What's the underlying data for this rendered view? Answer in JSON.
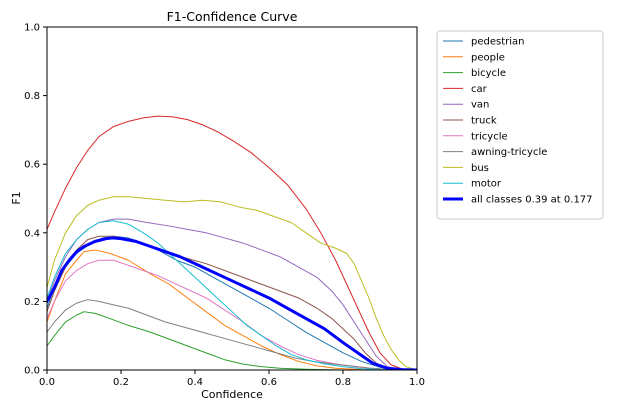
{
  "chart_data": {
    "type": "line",
    "title": "F1-Confidence Curve",
    "xlabel": "Confidence",
    "ylabel": "F1",
    "xlim": [
      0.0,
      1.0
    ],
    "ylim": [
      0.0,
      1.0
    ],
    "xticks": [
      "0.0",
      "0.2",
      "0.4",
      "0.6",
      "0.8",
      "1.0"
    ],
    "yticks": [
      "0.0",
      "0.2",
      "0.4",
      "0.6",
      "0.8",
      "1.0"
    ],
    "grid": false,
    "legend_position": "outside-right",
    "series": [
      {
        "name": "pedestrian",
        "color": "#1f77b4",
        "line_width": "thin",
        "points": [
          [
            0,
            0.18
          ],
          [
            0.02,
            0.24
          ],
          [
            0.05,
            0.3
          ],
          [
            0.08,
            0.34
          ],
          [
            0.12,
            0.37
          ],
          [
            0.15,
            0.385
          ],
          [
            0.18,
            0.39
          ],
          [
            0.22,
            0.385
          ],
          [
            0.26,
            0.37
          ],
          [
            0.3,
            0.35
          ],
          [
            0.35,
            0.32
          ],
          [
            0.4,
            0.3
          ],
          [
            0.45,
            0.27
          ],
          [
            0.5,
            0.24
          ],
          [
            0.55,
            0.21
          ],
          [
            0.6,
            0.18
          ],
          [
            0.65,
            0.145
          ],
          [
            0.7,
            0.11
          ],
          [
            0.75,
            0.08
          ],
          [
            0.8,
            0.05
          ],
          [
            0.85,
            0.025
          ],
          [
            0.9,
            0.008
          ],
          [
            0.95,
            0.002
          ],
          [
            1.0,
            0
          ]
        ]
      },
      {
        "name": "people",
        "color": "#ff7f0e",
        "line_width": "thin",
        "points": [
          [
            0,
            0.14
          ],
          [
            0.02,
            0.2
          ],
          [
            0.05,
            0.28
          ],
          [
            0.08,
            0.32
          ],
          [
            0.1,
            0.345
          ],
          [
            0.13,
            0.35
          ],
          [
            0.17,
            0.34
          ],
          [
            0.22,
            0.32
          ],
          [
            0.28,
            0.28
          ],
          [
            0.33,
            0.25
          ],
          [
            0.38,
            0.21
          ],
          [
            0.43,
            0.17
          ],
          [
            0.48,
            0.13
          ],
          [
            0.53,
            0.1
          ],
          [
            0.58,
            0.07
          ],
          [
            0.63,
            0.045
          ],
          [
            0.68,
            0.025
          ],
          [
            0.73,
            0.012
          ],
          [
            0.78,
            0.005
          ],
          [
            0.85,
            0.001
          ],
          [
            0.9,
            0
          ],
          [
            1.0,
            0
          ]
        ]
      },
      {
        "name": "bicycle",
        "color": "#2ca02c",
        "line_width": "thin",
        "points": [
          [
            0,
            0.07
          ],
          [
            0.02,
            0.1
          ],
          [
            0.05,
            0.14
          ],
          [
            0.08,
            0.16
          ],
          [
            0.1,
            0.17
          ],
          [
            0.13,
            0.165
          ],
          [
            0.17,
            0.15
          ],
          [
            0.22,
            0.13
          ],
          [
            0.28,
            0.11
          ],
          [
            0.33,
            0.09
          ],
          [
            0.38,
            0.07
          ],
          [
            0.43,
            0.05
          ],
          [
            0.48,
            0.03
          ],
          [
            0.53,
            0.017
          ],
          [
            0.58,
            0.01
          ],
          [
            0.63,
            0.005
          ],
          [
            0.7,
            0.002
          ],
          [
            0.8,
            0
          ],
          [
            1.0,
            0
          ]
        ]
      },
      {
        "name": "car",
        "color": "#d62728",
        "line_width": "thin",
        "points": [
          [
            0,
            0.41
          ],
          [
            0.02,
            0.46
          ],
          [
            0.05,
            0.53
          ],
          [
            0.08,
            0.59
          ],
          [
            0.11,
            0.64
          ],
          [
            0.14,
            0.68
          ],
          [
            0.18,
            0.71
          ],
          [
            0.22,
            0.725
          ],
          [
            0.26,
            0.735
          ],
          [
            0.3,
            0.74
          ],
          [
            0.34,
            0.738
          ],
          [
            0.38,
            0.73
          ],
          [
            0.42,
            0.715
          ],
          [
            0.46,
            0.695
          ],
          [
            0.5,
            0.67
          ],
          [
            0.55,
            0.635
          ],
          [
            0.6,
            0.59
          ],
          [
            0.65,
            0.54
          ],
          [
            0.7,
            0.47
          ],
          [
            0.74,
            0.4
          ],
          [
            0.78,
            0.32
          ],
          [
            0.81,
            0.25
          ],
          [
            0.84,
            0.18
          ],
          [
            0.87,
            0.11
          ],
          [
            0.9,
            0.05
          ],
          [
            0.93,
            0.015
          ],
          [
            0.96,
            0.003
          ],
          [
            1.0,
            0
          ]
        ]
      },
      {
        "name": "van",
        "color": "#9467bd",
        "line_width": "thin",
        "points": [
          [
            0,
            0.2
          ],
          [
            0.02,
            0.26
          ],
          [
            0.05,
            0.33
          ],
          [
            0.08,
            0.38
          ],
          [
            0.11,
            0.41
          ],
          [
            0.14,
            0.43
          ],
          [
            0.18,
            0.44
          ],
          [
            0.22,
            0.44
          ],
          [
            0.27,
            0.43
          ],
          [
            0.33,
            0.42
          ],
          [
            0.38,
            0.41
          ],
          [
            0.43,
            0.4
          ],
          [
            0.48,
            0.385
          ],
          [
            0.53,
            0.37
          ],
          [
            0.58,
            0.35
          ],
          [
            0.63,
            0.33
          ],
          [
            0.68,
            0.3
          ],
          [
            0.73,
            0.27
          ],
          [
            0.77,
            0.23
          ],
          [
            0.8,
            0.19
          ],
          [
            0.83,
            0.14
          ],
          [
            0.86,
            0.09
          ],
          [
            0.89,
            0.04
          ],
          [
            0.92,
            0.01
          ],
          [
            0.95,
            0.002
          ],
          [
            1.0,
            0
          ]
        ]
      },
      {
        "name": "truck",
        "color": "#8c564b",
        "line_width": "thin",
        "points": [
          [
            0,
            0.17
          ],
          [
            0.02,
            0.23
          ],
          [
            0.05,
            0.3
          ],
          [
            0.08,
            0.35
          ],
          [
            0.11,
            0.38
          ],
          [
            0.14,
            0.39
          ],
          [
            0.18,
            0.39
          ],
          [
            0.23,
            0.38
          ],
          [
            0.28,
            0.36
          ],
          [
            0.33,
            0.34
          ],
          [
            0.38,
            0.325
          ],
          [
            0.43,
            0.31
          ],
          [
            0.48,
            0.29
          ],
          [
            0.53,
            0.27
          ],
          [
            0.58,
            0.25
          ],
          [
            0.63,
            0.23
          ],
          [
            0.68,
            0.21
          ],
          [
            0.73,
            0.18
          ],
          [
            0.77,
            0.15
          ],
          [
            0.8,
            0.12
          ],
          [
            0.83,
            0.09
          ],
          [
            0.86,
            0.05
          ],
          [
            0.89,
            0.02
          ],
          [
            0.92,
            0.005
          ],
          [
            1.0,
            0
          ]
        ]
      },
      {
        "name": "tricycle",
        "color": "#e377c2",
        "line_width": "thin",
        "points": [
          [
            0,
            0.15
          ],
          [
            0.02,
            0.2
          ],
          [
            0.05,
            0.26
          ],
          [
            0.08,
            0.29
          ],
          [
            0.11,
            0.31
          ],
          [
            0.14,
            0.32
          ],
          [
            0.18,
            0.32
          ],
          [
            0.22,
            0.305
          ],
          [
            0.26,
            0.29
          ],
          [
            0.3,
            0.275
          ],
          [
            0.34,
            0.255
          ],
          [
            0.38,
            0.235
          ],
          [
            0.43,
            0.21
          ],
          [
            0.48,
            0.175
          ],
          [
            0.53,
            0.14
          ],
          [
            0.58,
            0.1
          ],
          [
            0.63,
            0.07
          ],
          [
            0.68,
            0.045
          ],
          [
            0.73,
            0.028
          ],
          [
            0.78,
            0.018
          ],
          [
            0.83,
            0.01
          ],
          [
            0.88,
            0.004
          ],
          [
            0.92,
            0.001
          ],
          [
            1.0,
            0
          ]
        ]
      },
      {
        "name": "awning-tricycle",
        "color": "#7f7f7f",
        "line_width": "thin",
        "points": [
          [
            0,
            0.11
          ],
          [
            0.02,
            0.14
          ],
          [
            0.05,
            0.175
          ],
          [
            0.08,
            0.195
          ],
          [
            0.11,
            0.205
          ],
          [
            0.14,
            0.2
          ],
          [
            0.18,
            0.19
          ],
          [
            0.22,
            0.18
          ],
          [
            0.27,
            0.16
          ],
          [
            0.32,
            0.14
          ],
          [
            0.37,
            0.125
          ],
          [
            0.42,
            0.11
          ],
          [
            0.47,
            0.095
          ],
          [
            0.52,
            0.08
          ],
          [
            0.57,
            0.065
          ],
          [
            0.62,
            0.05
          ],
          [
            0.67,
            0.035
          ],
          [
            0.72,
            0.025
          ],
          [
            0.77,
            0.018
          ],
          [
            0.82,
            0.012
          ],
          [
            0.87,
            0.006
          ],
          [
            0.92,
            0.002
          ],
          [
            1.0,
            0
          ]
        ]
      },
      {
        "name": "bus",
        "color": "#bcbd22",
        "line_width": "thin",
        "points": [
          [
            0,
            0.24
          ],
          [
            0.02,
            0.32
          ],
          [
            0.05,
            0.4
          ],
          [
            0.08,
            0.45
          ],
          [
            0.11,
            0.48
          ],
          [
            0.14,
            0.495
          ],
          [
            0.18,
            0.505
          ],
          [
            0.22,
            0.505
          ],
          [
            0.27,
            0.5
          ],
          [
            0.32,
            0.495
          ],
          [
            0.37,
            0.49
          ],
          [
            0.42,
            0.495
          ],
          [
            0.47,
            0.49
          ],
          [
            0.52,
            0.475
          ],
          [
            0.57,
            0.465
          ],
          [
            0.62,
            0.445
          ],
          [
            0.66,
            0.43
          ],
          [
            0.7,
            0.4
          ],
          [
            0.74,
            0.37
          ],
          [
            0.78,
            0.355
          ],
          [
            0.81,
            0.34
          ],
          [
            0.83,
            0.31
          ],
          [
            0.85,
            0.26
          ],
          [
            0.87,
            0.21
          ],
          [
            0.89,
            0.15
          ],
          [
            0.91,
            0.1
          ],
          [
            0.93,
            0.06
          ],
          [
            0.95,
            0.03
          ],
          [
            0.97,
            0.01
          ],
          [
            1.0,
            0
          ]
        ]
      },
      {
        "name": "motor",
        "color": "#17becf",
        "line_width": "thin",
        "points": [
          [
            0,
            0.21
          ],
          [
            0.02,
            0.27
          ],
          [
            0.05,
            0.34
          ],
          [
            0.08,
            0.38
          ],
          [
            0.11,
            0.41
          ],
          [
            0.14,
            0.43
          ],
          [
            0.18,
            0.435
          ],
          [
            0.22,
            0.425
          ],
          [
            0.26,
            0.4
          ],
          [
            0.3,
            0.37
          ],
          [
            0.34,
            0.33
          ],
          [
            0.38,
            0.29
          ],
          [
            0.42,
            0.25
          ],
          [
            0.46,
            0.21
          ],
          [
            0.5,
            0.17
          ],
          [
            0.54,
            0.13
          ],
          [
            0.58,
            0.1
          ],
          [
            0.62,
            0.07
          ],
          [
            0.66,
            0.045
          ],
          [
            0.7,
            0.03
          ],
          [
            0.75,
            0.018
          ],
          [
            0.8,
            0.01
          ],
          [
            0.85,
            0.004
          ],
          [
            0.9,
            0.001
          ],
          [
            1.0,
            0
          ]
        ]
      },
      {
        "name": "all classes 0.39 at 0.177",
        "color": "#0000ff",
        "line_width": "thick",
        "points": [
          [
            0,
            0.2
          ],
          [
            0.02,
            0.24
          ],
          [
            0.04,
            0.29
          ],
          [
            0.06,
            0.32
          ],
          [
            0.08,
            0.345
          ],
          [
            0.1,
            0.36
          ],
          [
            0.13,
            0.375
          ],
          [
            0.16,
            0.383
          ],
          [
            0.177,
            0.385
          ],
          [
            0.2,
            0.383
          ],
          [
            0.24,
            0.375
          ],
          [
            0.28,
            0.36
          ],
          [
            0.32,
            0.345
          ],
          [
            0.36,
            0.33
          ],
          [
            0.4,
            0.31
          ],
          [
            0.45,
            0.285
          ],
          [
            0.5,
            0.26
          ],
          [
            0.55,
            0.235
          ],
          [
            0.6,
            0.21
          ],
          [
            0.65,
            0.18
          ],
          [
            0.7,
            0.15
          ],
          [
            0.75,
            0.12
          ],
          [
            0.8,
            0.08
          ],
          [
            0.84,
            0.05
          ],
          [
            0.88,
            0.02
          ],
          [
            0.92,
            0.005
          ],
          [
            0.96,
            0.001
          ],
          [
            1.0,
            0
          ]
        ]
      }
    ]
  }
}
